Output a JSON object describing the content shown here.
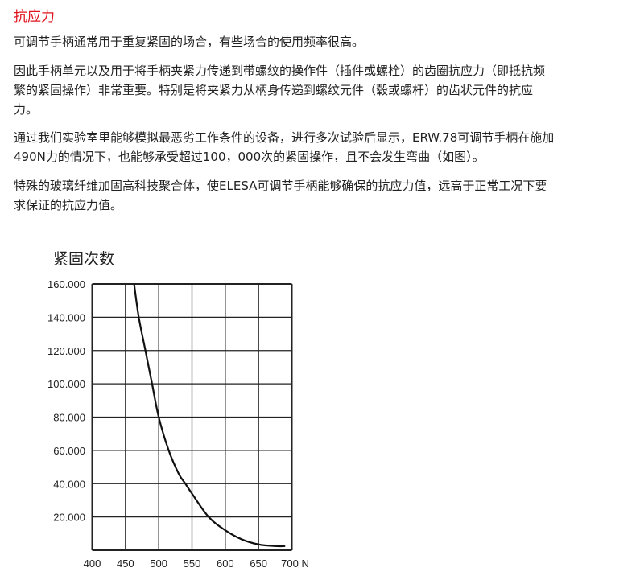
{
  "section_title": "抗应力",
  "paragraphs": [
    [
      "可调节手柄通常用于重复紧固的场合，有些场合的使用频率很高。"
    ],
    [
      "因此手柄单元以及用于将手柄夹紧力传递到带螺纹的操作件（插件或螺栓）的齿圈抗应力（即抵抗频",
      "繁的紧固操作）非常重要。特别是将夹紧力从柄身传递到螺纹元件（毂或螺杆）的齿状元件的抗应",
      "力。"
    ],
    [
      "通过我们实验室里能够模拟最恶劣工作条件的设备，进行多次试验后显示，ERW.78可调节手柄在施加",
      "490N力的情况下，也能够承受超过100，000次的紧固操作，且不会发生弯曲（如图）。"
    ],
    [
      "特殊的玻璃纤维加固高科技聚合体，使ELESA可调节手柄能够确保的抗应力值，远高于正常工况下要",
      "求保证的抗应力值。"
    ]
  ],
  "chart_data": {
    "type": "line",
    "title": "紧固次数",
    "xlabel": "",
    "ylabel": "",
    "x_unit": "N",
    "xlim": [
      400,
      700
    ],
    "ylim": [
      0,
      160000
    ],
    "grid": true,
    "x_ticks": [
      "400",
      "450",
      "500",
      "550",
      "600",
      "650",
      "700 N"
    ],
    "y_ticks": [
      "20.000",
      "40.000",
      "60.000",
      "80.000",
      "100.000",
      "120.000",
      "140.000",
      "160.000"
    ],
    "series": [
      {
        "x": [
          463,
          470,
          480,
          490,
          500,
          515,
          530,
          540,
          550,
          575,
          600,
          625,
          650,
          675,
          690
        ],
        "y": [
          160000,
          140000,
          120000,
          100000,
          80000,
          60000,
          46000,
          40000,
          34000,
          20000,
          12000,
          6500,
          3500,
          2500,
          2500
        ]
      }
    ],
    "colors": {
      "line": "#111111",
      "grid": "#222222",
      "title_accent": "#e0141e"
    }
  }
}
